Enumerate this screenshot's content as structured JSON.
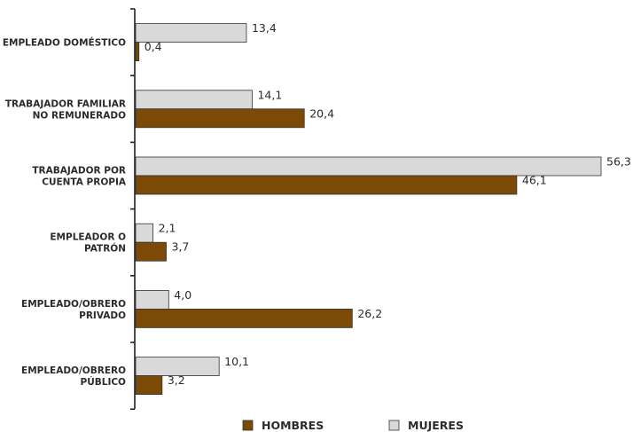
{
  "chart_data": {
    "type": "bar",
    "orientation": "horizontal",
    "categories": [
      [
        "EMPLEADO DOMÉSTICO"
      ],
      [
        "TRABAJADOR FAMILIAR",
        "NO REMUNERADO"
      ],
      [
        "TRABAJADOR POR",
        "CUENTA PROPIA"
      ],
      [
        "EMPLEADOR O",
        "PATRÓN"
      ],
      [
        "EMPLEADO/OBRERO",
        "PRIVADO"
      ],
      [
        "EMPLEADO/OBRERO",
        "PÚBLICO"
      ]
    ],
    "series": [
      {
        "name": "MUJERES",
        "color": "#d9d9d9",
        "values": [
          13.4,
          14.1,
          56.3,
          2.1,
          4.0,
          10.1
        ],
        "labels": [
          "13,4",
          "14,1",
          "56,3",
          "2,1",
          "4,0",
          "10,1"
        ]
      },
      {
        "name": "HOMBRES",
        "color": "#7b4a07",
        "values": [
          0.4,
          20.4,
          46.1,
          3.7,
          26.2,
          3.2
        ],
        "labels": [
          "0,4",
          "20,4",
          "46,1",
          "3,7",
          "26,2",
          "3,2"
        ]
      }
    ],
    "legend_order": [
      "HOMBRES",
      "MUJERES"
    ],
    "legend_position": "bottom",
    "xlim": [
      0,
      56.3
    ],
    "grid": false
  }
}
